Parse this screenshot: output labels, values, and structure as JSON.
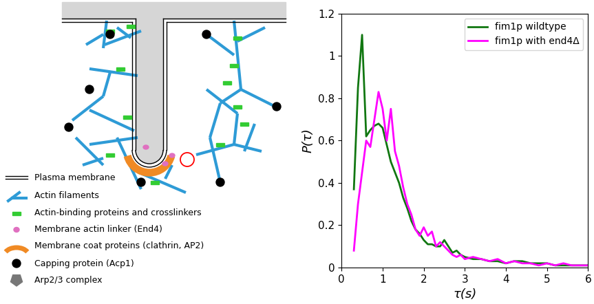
{
  "diagram": {
    "legend": [
      {
        "key": "membrane",
        "label": "Plasma membrane"
      },
      {
        "key": "actin",
        "label": "Actin filaments"
      },
      {
        "key": "crosslinker",
        "label": "Actin-binding proteins and crosslinkers"
      },
      {
        "key": "linker",
        "label": "Membrane actin linker (End4)"
      },
      {
        "key": "coat",
        "label": "Membrane coat proteins (clathrin, AP2)"
      },
      {
        "key": "capping",
        "label": "Capping protein (Acp1)"
      },
      {
        "key": "arp",
        "label": "Arp2/3 complex"
      }
    ]
  },
  "chart_data": {
    "type": "line",
    "xlabel": "τ(s)",
    "ylabel": "P(τ)",
    "x": [
      0.3,
      0.4,
      0.5,
      0.6,
      0.7,
      0.8,
      0.9,
      1.0,
      1.1,
      1.2,
      1.3,
      1.4,
      1.5,
      1.6,
      1.7,
      1.8,
      1.9,
      2.0,
      2.1,
      2.2,
      2.3,
      2.4,
      2.5,
      2.6,
      2.7,
      2.8,
      2.9,
      3.0,
      3.2,
      3.4,
      3.6,
      3.8,
      4.0,
      4.2,
      4.4,
      4.6,
      4.8,
      5.0,
      5.2,
      5.4,
      5.6,
      5.8,
      6.0
    ],
    "series": [
      {
        "name": "fim1p wildtype",
        "color": "#117711",
        "values": [
          0.37,
          0.85,
          1.1,
          0.62,
          0.65,
          0.67,
          0.68,
          0.66,
          0.58,
          0.5,
          0.45,
          0.4,
          0.33,
          0.28,
          0.22,
          0.18,
          0.16,
          0.13,
          0.11,
          0.11,
          0.1,
          0.1,
          0.13,
          0.1,
          0.07,
          0.08,
          0.06,
          0.05,
          0.04,
          0.04,
          0.03,
          0.03,
          0.02,
          0.03,
          0.03,
          0.02,
          0.02,
          0.02,
          0.01,
          0.01,
          0.01,
          0.01,
          0.01
        ]
      },
      {
        "name": "fim1p with end4Δ",
        "color": "#ff00ff",
        "values": [
          0.08,
          0.3,
          0.45,
          0.6,
          0.57,
          0.7,
          0.83,
          0.75,
          0.6,
          0.75,
          0.55,
          0.48,
          0.38,
          0.3,
          0.25,
          0.18,
          0.15,
          0.19,
          0.15,
          0.17,
          0.1,
          0.12,
          0.1,
          0.08,
          0.06,
          0.05,
          0.06,
          0.04,
          0.05,
          0.04,
          0.03,
          0.04,
          0.02,
          0.03,
          0.02,
          0.02,
          0.01,
          0.02,
          0.01,
          0.02,
          0.01,
          0.01,
          0.01
        ]
      }
    ],
    "xlim": [
      0,
      6
    ],
    "xticks": [
      0,
      1,
      2,
      3,
      4,
      5,
      6
    ],
    "ylim": [
      0,
      1.2
    ],
    "yticks": [
      0,
      0.2,
      0.4,
      0.6,
      0.8,
      1,
      1.2
    ],
    "legend": "upper right"
  }
}
